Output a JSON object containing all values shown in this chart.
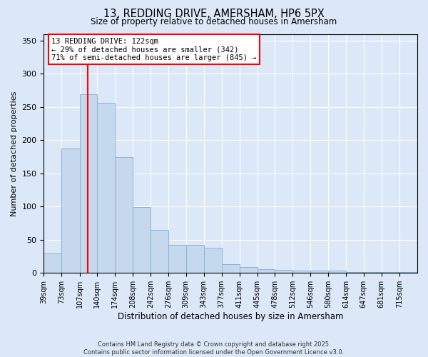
{
  "title": "13, REDDING DRIVE, AMERSHAM, HP6 5PX",
  "subtitle": "Size of property relative to detached houses in Amersham",
  "xlabel": "Distribution of detached houses by size in Amersham",
  "ylabel": "Number of detached properties",
  "bar_color": "#c5d8ee",
  "bar_edge_color": "#8ab4d4",
  "background_color": "#dce8f8",
  "grid_color": "#ffffff",
  "vline_x": 122,
  "vline_color": "red",
  "annotation_text": "13 REDDING DRIVE: 122sqm\n← 29% of detached houses are smaller (342)\n71% of semi-detached houses are larger (845) →",
  "annotation_box_color": "white",
  "annotation_box_edge": "red",
  "categories": [
    "39sqm",
    "73sqm",
    "107sqm",
    "140sqm",
    "174sqm",
    "208sqm",
    "242sqm",
    "276sqm",
    "309sqm",
    "343sqm",
    "377sqm",
    "411sqm",
    "445sqm",
    "478sqm",
    "512sqm",
    "546sqm",
    "580sqm",
    "614sqm",
    "647sqm",
    "681sqm",
    "715sqm"
  ],
  "bin_edges": [
    39,
    73,
    107,
    140,
    174,
    208,
    242,
    276,
    309,
    343,
    377,
    411,
    445,
    478,
    512,
    546,
    580,
    614,
    647,
    681,
    715,
    749
  ],
  "values": [
    29,
    187,
    269,
    256,
    175,
    99,
    65,
    42,
    42,
    38,
    13,
    9,
    6,
    5,
    4,
    4,
    4,
    1,
    1,
    1,
    1
  ],
  "ylim": [
    0,
    360
  ],
  "yticks": [
    0,
    50,
    100,
    150,
    200,
    250,
    300,
    350
  ],
  "footer_line1": "Contains HM Land Registry data © Crown copyright and database right 2025.",
  "footer_line2": "Contains public sector information licensed under the Open Government Licence v3.0."
}
